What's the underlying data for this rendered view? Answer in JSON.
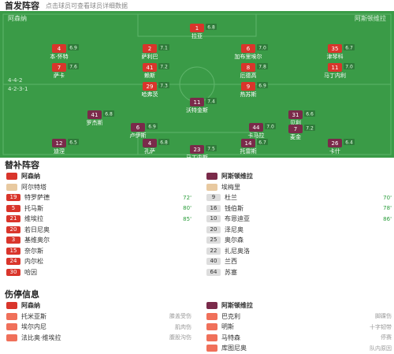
{
  "header": {
    "title": "首发阵容",
    "subtitle": "点击球员可查看球员详细数据"
  },
  "pitch": {
    "home_name": "阿森纳",
    "away_name": "阿斯顿维拉",
    "home_formation": "4-4-2",
    "away_formation": "4-2-3-1",
    "home": [
      {
        "number": "1",
        "name": "拉亚",
        "rating": "6.8"
      },
      {
        "number": "4",
        "name": "本·怀特",
        "rating": "6.9"
      },
      {
        "number": "2",
        "name": "萨利巴",
        "rating": "7.1"
      },
      {
        "number": "6",
        "name": "加布里埃尔",
        "rating": "7.0"
      },
      {
        "number": "35",
        "name": "津琴科",
        "rating": "6.7"
      },
      {
        "number": "7",
        "name": "萨卡",
        "rating": "7.6"
      },
      {
        "number": "41",
        "name": "赖斯",
        "rating": "7.2"
      },
      {
        "number": "8",
        "name": "厄德高",
        "rating": "7.8"
      },
      {
        "number": "11",
        "name": "马丁内利",
        "rating": "7.0"
      },
      {
        "number": "29",
        "name": "哈弗茨",
        "rating": "7.3"
      },
      {
        "number": "9",
        "name": "热苏斯",
        "rating": "6.9"
      }
    ],
    "away": [
      {
        "number": "11",
        "name": "沃特金斯",
        "rating": "7.4"
      },
      {
        "number": "41",
        "name": "罗杰斯",
        "rating": "6.8"
      },
      {
        "number": "31",
        "name": "贝利",
        "rating": "6.6"
      },
      {
        "number": "6",
        "name": "卢伊斯",
        "rating": "6.9"
      },
      {
        "number": "44",
        "name": "卡马拉",
        "rating": "7.0"
      },
      {
        "number": "7",
        "name": "麦金",
        "rating": "7.2"
      },
      {
        "number": "12",
        "name": "迪涅",
        "rating": "6.5"
      },
      {
        "number": "4",
        "name": "孔萨",
        "rating": "6.8"
      },
      {
        "number": "14",
        "name": "托雷斯",
        "rating": "6.7"
      },
      {
        "number": "26",
        "name": "卡什",
        "rating": "6.4"
      },
      {
        "number": "23",
        "name": "马丁内斯",
        "rating": "7.5"
      }
    ]
  },
  "subs": {
    "title": "替补阵容",
    "home_name": "阿森纳",
    "away_name": "阿斯顿维拉",
    "home_coach": "阿尔特塔",
    "away_coach": "埃梅里",
    "home": [
      {
        "number": "19",
        "name": "特罗萨德",
        "minute": "72'"
      },
      {
        "number": "5",
        "name": "托马斯",
        "minute": "80'"
      },
      {
        "number": "21",
        "name": "维埃拉",
        "minute": "85'"
      },
      {
        "number": "20",
        "name": "若日尼奥",
        "minute": ""
      },
      {
        "number": "3",
        "name": "基维奥尔",
        "minute": ""
      },
      {
        "number": "15",
        "name": "奈尔斯",
        "minute": ""
      },
      {
        "number": "24",
        "name": "内尔松",
        "minute": ""
      },
      {
        "number": "30",
        "name": "哈因",
        "minute": ""
      }
    ],
    "away": [
      {
        "number": "9",
        "name": "杜兰",
        "minute": "70'"
      },
      {
        "number": "16",
        "name": "钱伯斯",
        "minute": "78'"
      },
      {
        "number": "10",
        "name": "布恩迪亚",
        "minute": "86'"
      },
      {
        "number": "20",
        "name": "泽尼奥",
        "minute": ""
      },
      {
        "number": "25",
        "name": "奥尔森",
        "minute": ""
      },
      {
        "number": "22",
        "name": "扎尼奥洛",
        "minute": ""
      },
      {
        "number": "40",
        "name": "兰西",
        "minute": ""
      },
      {
        "number": "64",
        "name": "苏塞",
        "minute": ""
      }
    ]
  },
  "injuries": {
    "title": "伤停信息",
    "home": [
      {
        "name": "托米亚斯",
        "reason": "膝盖受伤"
      },
      {
        "name": "埃尔内尼",
        "reason": "肌肉伤"
      },
      {
        "name": "法比奥·维埃拉",
        "reason": "腹股沟伤"
      }
    ],
    "away": [
      {
        "name": "巴克利",
        "reason": "脚踝伤"
      },
      {
        "name": "明斯",
        "reason": "十字韧带"
      },
      {
        "name": "马特森",
        "reason": "停赛"
      },
      {
        "name": "库图尼奥",
        "reason": "队内原因"
      }
    ]
  }
}
